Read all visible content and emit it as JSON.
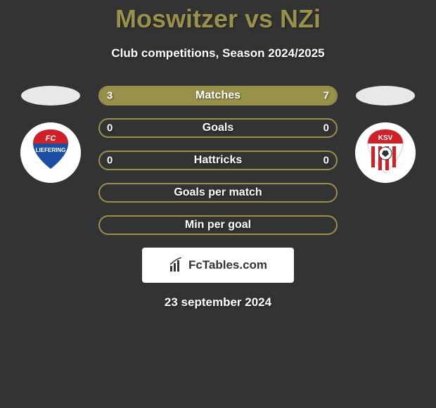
{
  "colors": {
    "background": "#333333",
    "accent": "#97914a",
    "text_light": "#ffffff",
    "badge_bg": "#ffffff",
    "badge_text": "#333333"
  },
  "title": "Moswitzer vs NZi",
  "subtitle": "Club competitions, Season 2024/2025",
  "left_team": {
    "name": "FC Liefering",
    "crest": {
      "bg": "#ffffff",
      "top_color": "#d22027",
      "bottom_color": "#1a4fa3",
      "text_top": "FC",
      "text_bottom": "LIEFERING"
    }
  },
  "right_team": {
    "name": "KSV",
    "crest": {
      "bg": "#ffffff",
      "stripe_color": "#d22027",
      "top_color": "#d22027",
      "text": "KSV"
    }
  },
  "bars": [
    {
      "label": "Matches",
      "left": "3",
      "right": "7",
      "left_pct": 30,
      "right_pct": 70
    },
    {
      "label": "Goals",
      "left": "0",
      "right": "0",
      "left_pct": 0,
      "right_pct": 0
    },
    {
      "label": "Hattricks",
      "left": "0",
      "right": "0",
      "left_pct": 0,
      "right_pct": 0
    },
    {
      "label": "Goals per match",
      "left": null,
      "right": null,
      "left_pct": 0,
      "right_pct": 0
    },
    {
      "label": "Min per goal",
      "left": null,
      "right": null,
      "left_pct": 0,
      "right_pct": 0
    }
  ],
  "footer": {
    "site": "FcTables.com"
  },
  "date": "23 september 2024"
}
